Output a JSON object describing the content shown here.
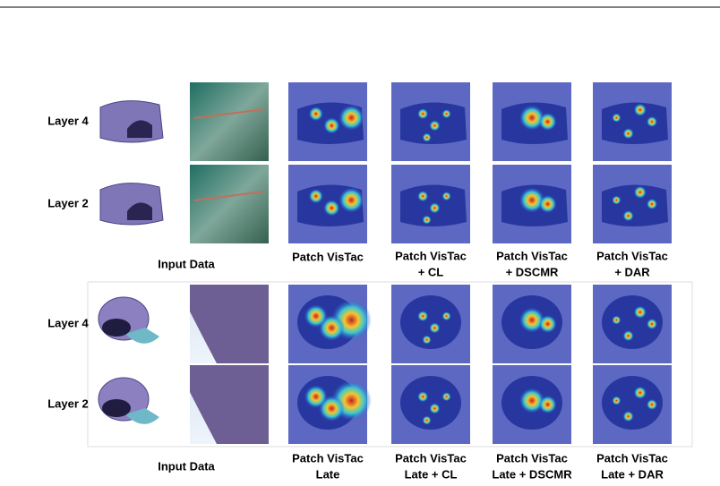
{
  "panels": [
    {
      "rows": [
        "Layer 4",
        "Layer 2"
      ],
      "captions": [
        [
          "Input Data"
        ],
        [
          "Patch VisTac"
        ],
        [
          "Patch VisTac",
          "+ CL"
        ],
        [
          "Patch VisTac",
          "+ DSCMR"
        ],
        [
          "Patch VisTac",
          "+ DAR"
        ]
      ]
    },
    {
      "rows": [
        "Layer 4",
        "Layer 2"
      ],
      "captions": [
        [
          "Input Data"
        ],
        [
          "Patch VisTac",
          "Late"
        ],
        [
          "Patch VisTac",
          "Late + CL"
        ],
        [
          "Patch VisTac",
          "Late + DSCMR"
        ],
        [
          "Patch VisTac",
          "Late + DAR"
        ]
      ]
    }
  ]
}
